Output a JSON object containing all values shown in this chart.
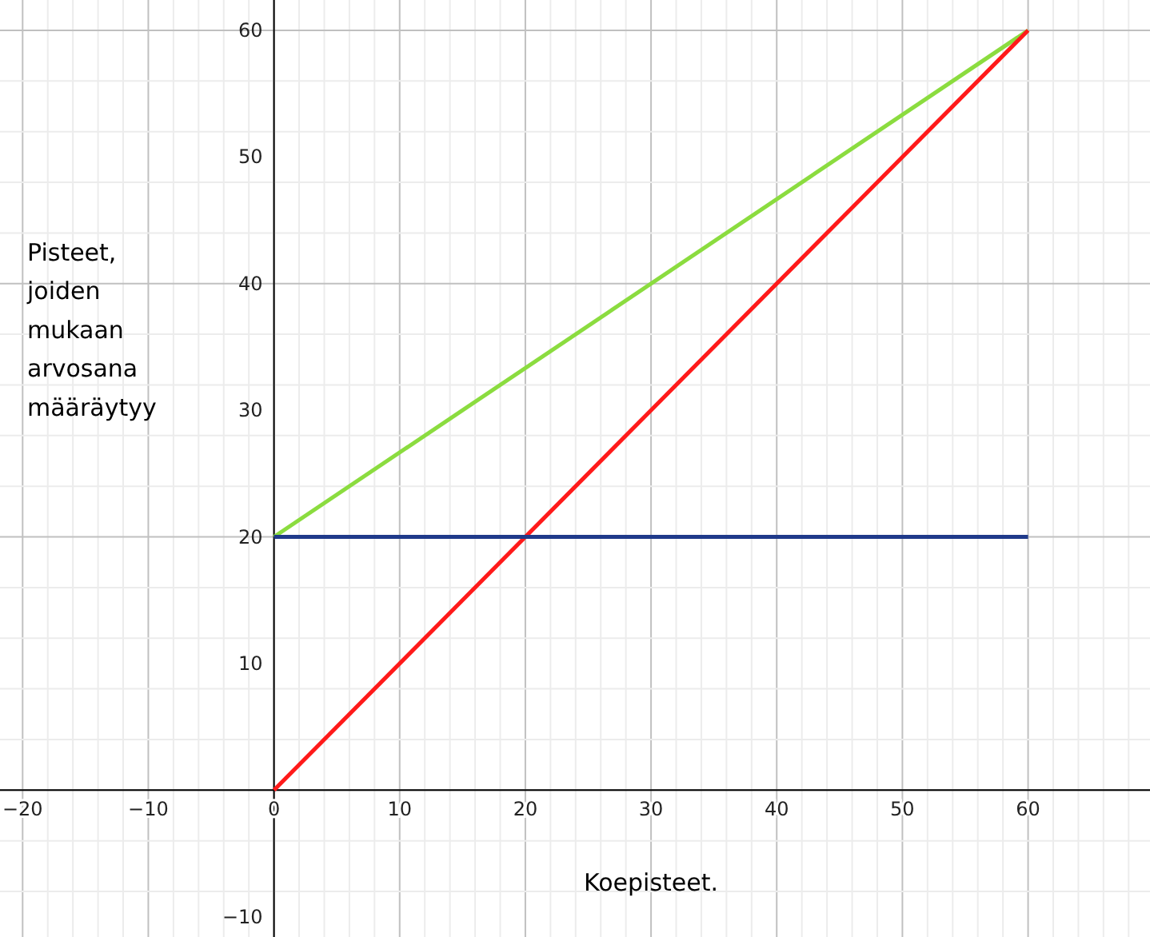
{
  "chart_data": {
    "type": "line",
    "xlabel": "Koepisteet.",
    "ylabel": "Pisteet, joiden mukaan arvosana määräytyy",
    "xlim": [
      -21.8,
      69.7
    ],
    "ylim": [
      -11.6,
      62.4
    ],
    "xticks": [
      {
        "value": -20,
        "label": "−20"
      },
      {
        "value": -10,
        "label": "−10"
      },
      0,
      10,
      20,
      30,
      40,
      50,
      60
    ],
    "yticks": [
      {
        "value": -10,
        "label": "−10"
      },
      10,
      20,
      30,
      40,
      50,
      60
    ],
    "grid": true,
    "marker": "none",
    "line_style": "solid",
    "x": [
      0,
      60
    ],
    "series": [
      {
        "color": "#8bdc3f",
        "values": [
          20,
          60
        ]
      },
      {
        "color": "#ff1a1a",
        "values": [
          0,
          60
        ]
      },
      {
        "color": "#1f3a8a",
        "values": [
          20,
          20
        ]
      }
    ]
  }
}
